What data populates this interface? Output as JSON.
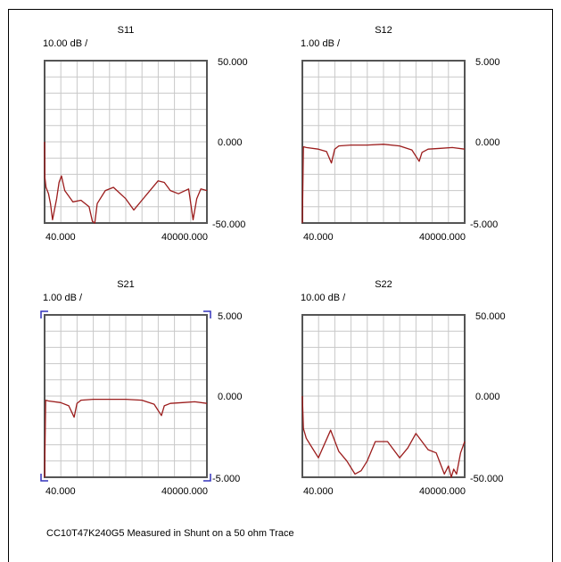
{
  "caption": "CC10T47K240G5 Measured in Shunt on a 50 ohm Trace",
  "colors": {
    "trace": "#9b1c1c",
    "grid": "#c8c8c8",
    "frame": "#555555",
    "marker": "#3333bb"
  },
  "chart_data": [
    {
      "type": "line",
      "title": "S11",
      "scale_label": "10.00 dB /",
      "x_tick_labels": [
        "40.000",
        "40000.000"
      ],
      "y_tick_labels": [
        "50.000",
        "0.000",
        "-50.000"
      ],
      "xlim": [
        40,
        40000
      ],
      "ylim": [
        -50,
        50
      ],
      "grid": true,
      "series": [
        {
          "x": [
            40,
            100,
            400,
            1000,
            1500,
            2000,
            3000,
            3600,
            4200,
            5000,
            7000,
            9000,
            11000,
            11800,
            12400,
            13000,
            15000,
            17000,
            20000,
            22000,
            24000,
            26000,
            28000,
            29500,
            31000,
            33000,
            35500,
            36600,
            37500,
            38500,
            40000
          ],
          "y": [
            0,
            -22,
            -28,
            -32,
            -38,
            -48,
            -35,
            -25,
            -21,
            -30,
            -37,
            -36,
            -40,
            -49,
            -53,
            -38,
            -30,
            -28,
            -35,
            -42,
            -36,
            -30,
            -24,
            -25,
            -30,
            -32,
            -29,
            -48,
            -35,
            -29,
            -30
          ]
        }
      ]
    },
    {
      "type": "line",
      "title": "S12",
      "scale_label": "1.00 dB /",
      "x_tick_labels": [
        "40.000",
        "40000.000"
      ],
      "y_tick_labels": [
        "5.000",
        "0.000",
        "-5.000"
      ],
      "xlim": [
        40,
        40000
      ],
      "ylim": [
        -5,
        5
      ],
      "grid": true,
      "series": [
        {
          "x": [
            40,
            300,
            1000,
            4000,
            6000,
            7200,
            8000,
            9000,
            12000,
            16000,
            20000,
            24000,
            27000,
            28800,
            29500,
            31000,
            34000,
            37000,
            40000
          ],
          "y": [
            -5,
            -0.3,
            -0.35,
            -0.45,
            -0.6,
            -1.3,
            -0.45,
            -0.25,
            -0.2,
            -0.2,
            -0.15,
            -0.25,
            -0.5,
            -1.2,
            -0.65,
            -0.45,
            -0.4,
            -0.35,
            -0.45
          ]
        }
      ]
    },
    {
      "type": "line",
      "title": "S21",
      "scale_label": "1.00 dB /",
      "x_tick_labels": [
        "40.000",
        "40000.000"
      ],
      "y_tick_labels": [
        "5.000",
        "0.000",
        "-5.000"
      ],
      "xlim": [
        40,
        40000
      ],
      "ylim": [
        -5,
        5
      ],
      "grid": true,
      "series": [
        {
          "x": [
            40,
            300,
            1000,
            4000,
            6000,
            7300,
            8000,
            9000,
            12000,
            16000,
            20000,
            24000,
            27000,
            28800,
            29500,
            31000,
            34000,
            37000,
            40000
          ],
          "y": [
            -5,
            -0.25,
            -0.3,
            -0.4,
            -0.6,
            -1.3,
            -0.45,
            -0.25,
            -0.2,
            -0.2,
            -0.2,
            -0.25,
            -0.5,
            -1.2,
            -0.6,
            -0.45,
            -0.4,
            -0.35,
            -0.45
          ]
        }
      ]
    },
    {
      "type": "line",
      "title": "S22",
      "scale_label": "10.00 dB /",
      "x_tick_labels": [
        "40.000",
        "40000.000"
      ],
      "y_tick_labels": [
        "50.000",
        "0.000",
        "-50.000"
      ],
      "xlim": [
        40,
        40000
      ],
      "ylim": [
        -50,
        50
      ],
      "grid": true,
      "series": [
        {
          "x": [
            40,
            300,
            1000,
            2000,
            4000,
            7000,
            9000,
            11000,
            13000,
            14500,
            16000,
            18000,
            21000,
            24000,
            26000,
            28000,
            31000,
            33000,
            35000,
            36000,
            36700,
            37300,
            38000,
            39000,
            40000
          ],
          "y": [
            0,
            -20,
            -26,
            -30,
            -38,
            -21,
            -34,
            -40,
            -48,
            -46,
            -40,
            -28,
            -28,
            -38,
            -32,
            -23,
            -33,
            -35,
            -48,
            -43,
            -52,
            -45,
            -48,
            -35,
            -28
          ]
        }
      ]
    }
  ]
}
